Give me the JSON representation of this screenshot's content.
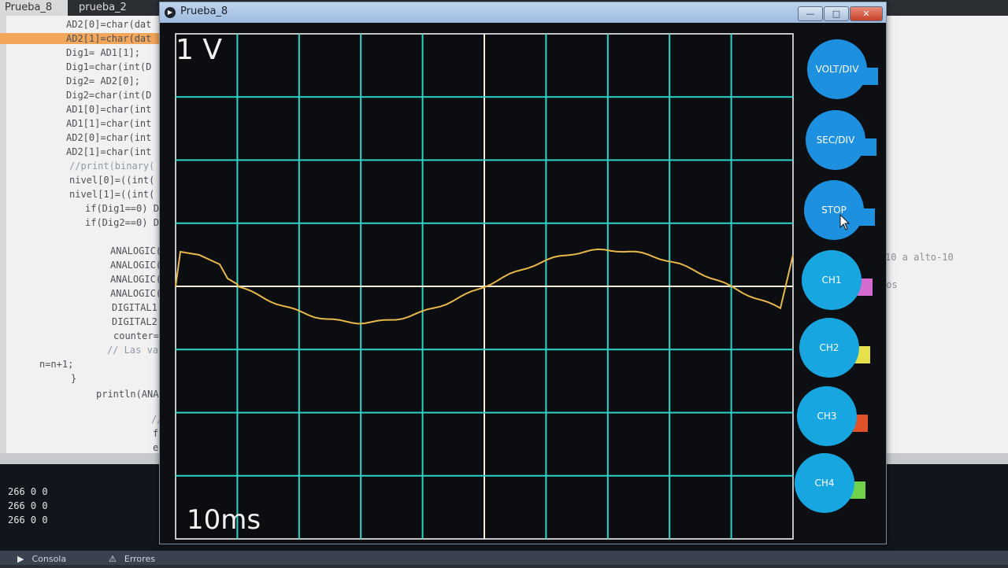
{
  "ide": {
    "tabs": [
      "Prueba_8",
      "prueba_2"
    ],
    "code_lines": [
      "AD2[0]=char(dat",
      "AD2[1]=char(dat",
      "Dig1= AD1[1];",
      "Dig1=char(int(D",
      "Dig2= AD2[0];",
      "Dig2=char(int(D",
      "AD1[0]=char(int",
      "AD1[1]=char(int",
      "AD2[0]=char(int",
      "AD2[1]=char(int",
      "//print(binary(",
      "nivel[0]=((int(",
      "nivel[1]=((int(",
      "if(Dig1==0) D",
      "if(Dig2==0) D",
      "ANALOGIC(",
      "ANALOGIC(",
      "ANALOGIC(",
      "ANALOGIC(",
      "DIGITAL1",
      "DIGITAL2",
      "counter=c",
      "// Las va",
      "n=n+1;",
      "}",
      "println(ANA",
      "//(",
      "fla",
      "ele"
    ],
    "side_notes": [
      "10 a alto-10",
      "cos"
    ],
    "console_lines": [
      "266 0 0",
      "266 0 0",
      "266 0 0"
    ],
    "bottom_tabs": [
      "Consola",
      "Errores"
    ]
  },
  "window": {
    "title": "Prueba_8"
  },
  "scope": {
    "volt_div_label": "1 V",
    "time_div_label": "10ms",
    "grid_color": "#2fd3c9",
    "trace_color": "#e8b84a",
    "axis_color": "#f5eed8",
    "background_color": "#0b0d10"
  },
  "controls": [
    {
      "label": "VOLT/DIV",
      "color": "#1e90e0",
      "tab_color": "#1e90e0"
    },
    {
      "label": "SEC/DIV",
      "color": "#1e90e0",
      "tab_color": "#1e90e0"
    },
    {
      "label": "STOP",
      "color": "#1e90e0",
      "tab_color": "#1e90e0"
    },
    {
      "label": "CH1",
      "color": "#18a6e0",
      "tab_color": "#d46bd0"
    },
    {
      "label": "CH2",
      "color": "#18a6e0",
      "tab_color": "#e6e04a"
    },
    {
      "label": "CH3",
      "color": "#18a6e0",
      "tab_color": "#e0522a"
    },
    {
      "label": "CH4",
      "color": "#18a6e0",
      "tab_color": "#6ed24a"
    }
  ]
}
